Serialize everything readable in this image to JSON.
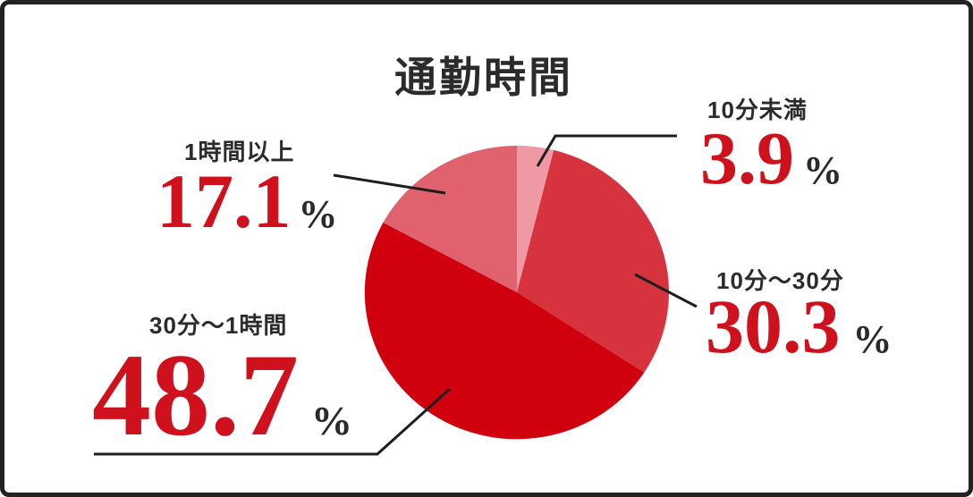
{
  "chart_data": {
    "type": "pie",
    "title": "通勤時間",
    "unit": "%",
    "legend_position": "callouts",
    "start_angle_deg": 0,
    "clockwise": true,
    "segments": [
      {
        "label": "10分未満",
        "value": 3.9,
        "display": "3.9",
        "color": "#ee99a4"
      },
      {
        "label": "10分〜30分",
        "value": 30.3,
        "display": "30.3",
        "color": "#d6333f"
      },
      {
        "label": "30分〜1時間",
        "value": 48.7,
        "display": "48.7",
        "color": "#d1000f"
      },
      {
        "label": "1時間以上",
        "value": 17.1,
        "display": "17.1",
        "color": "#e0626e"
      }
    ]
  },
  "colors": {
    "number_red": "#ce111d",
    "text_dark": "#2b2b2b",
    "leader_line": "#1e1e1e",
    "frame": "#222222"
  }
}
